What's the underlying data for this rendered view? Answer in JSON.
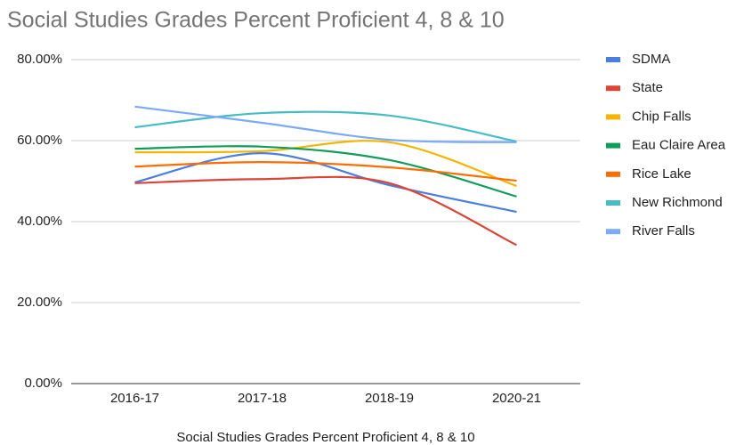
{
  "chart_data": {
    "type": "line",
    "title": "Social Studies Grades Percent Proficient 4, 8 & 10",
    "x_label": "Social Studies Grades Percent Proficient 4, 8 & 10",
    "categories": [
      "2016-17",
      "2017-18",
      "2018-19",
      "2020-21"
    ],
    "series": [
      {
        "name": "SDMA",
        "color": "#4a7fe0",
        "values": [
          49.7,
          56.9,
          49.0,
          42.4
        ]
      },
      {
        "name": "State",
        "color": "#db4437",
        "values": [
          49.5,
          50.5,
          49.5,
          34.2
        ]
      },
      {
        "name": "Chip Falls",
        "color": "#f4b400",
        "values": [
          57.1,
          57.4,
          59.6,
          48.8
        ]
      },
      {
        "name": "Eau Claire Area",
        "color": "#0f9d58",
        "values": [
          58.0,
          58.5,
          55.2,
          46.2
        ]
      },
      {
        "name": "Rice Lake",
        "color": "#ff6d01",
        "values": [
          53.6,
          54.7,
          53.4,
          50.1
        ]
      },
      {
        "name": "New Richmond",
        "color": "#46bdc6",
        "values": [
          63.3,
          66.8,
          66.2,
          59.8
        ]
      },
      {
        "name": "River Falls",
        "color": "#7baaf7",
        "values": [
          68.4,
          64.4,
          60.2,
          59.6
        ]
      }
    ],
    "ylim": [
      0,
      80
    ],
    "yticks": [
      {
        "value": 0,
        "label": "0.00%"
      },
      {
        "value": 20,
        "label": "20.00%"
      },
      {
        "value": 40,
        "label": "40.00%"
      },
      {
        "value": 60,
        "label": "60.00%"
      },
      {
        "value": 80,
        "label": "80.00%"
      }
    ],
    "grid": true,
    "smooth": true,
    "legend": "right"
  }
}
